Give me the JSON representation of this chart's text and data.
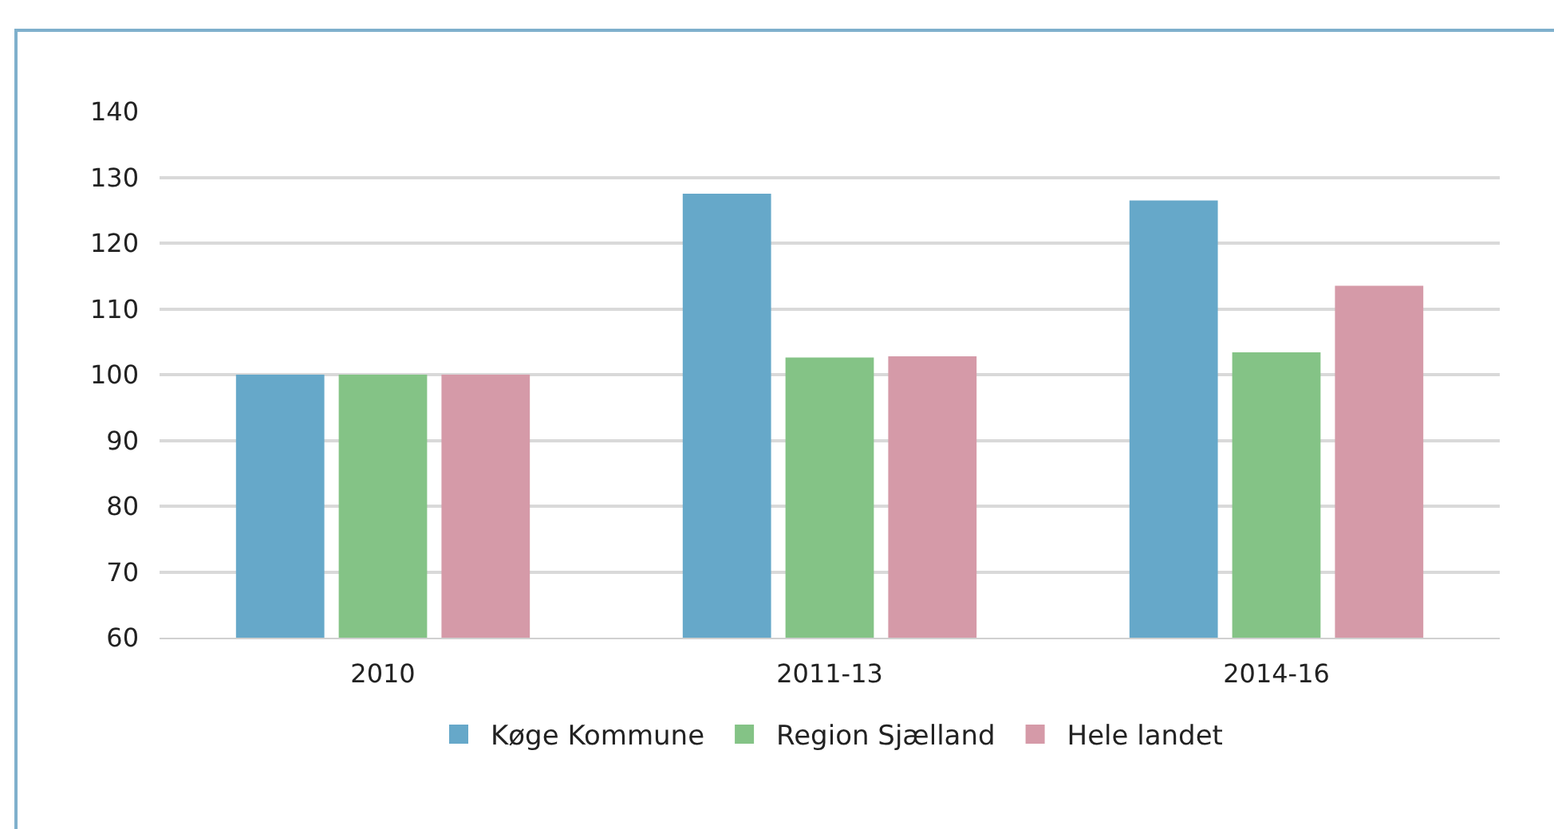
{
  "chart_data": {
    "type": "bar",
    "categories": [
      "2010",
      "2011-13",
      "2014-16"
    ],
    "series": [
      {
        "name": "Køge Kommune",
        "color": "#66a8c9",
        "values": [
          100,
          127.5,
          126.5
        ]
      },
      {
        "name": "Region Sjælland",
        "color": "#84c386",
        "values": [
          100,
          102.6,
          103.4
        ]
      },
      {
        "name": "Hele landet",
        "color": "#d59aa8",
        "values": [
          100,
          102.8,
          113.5
        ]
      }
    ],
    "ylim": [
      60,
      140
    ],
    "yticks": [
      60,
      70,
      80,
      90,
      100,
      110,
      120,
      130,
      140
    ],
    "grid": "y",
    "legend": "bottom"
  }
}
